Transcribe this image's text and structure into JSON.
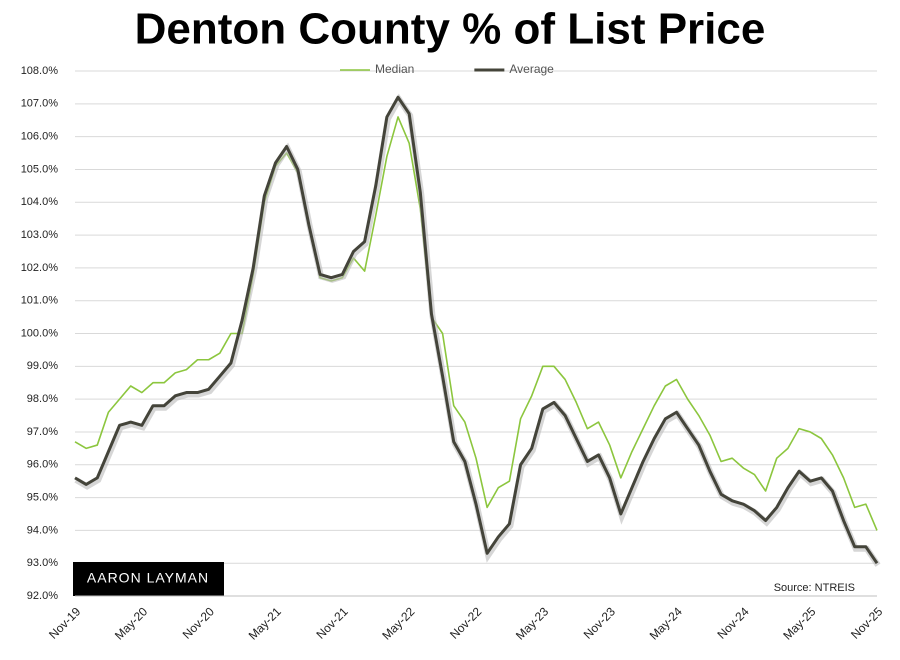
{
  "chart_data": {
    "type": "line",
    "title": "Denton County % of List Price",
    "source": "Source: NTREIS",
    "logo_text": "AARON LAYMAN",
    "legend_position": "top",
    "grid": true,
    "categories": [
      "Nov-19",
      null,
      null,
      null,
      null,
      null,
      "May-20",
      null,
      null,
      null,
      null,
      null,
      "Nov-20",
      null,
      null,
      null,
      null,
      null,
      "May-21",
      null,
      null,
      null,
      null,
      null,
      "Nov-21",
      null,
      null,
      null,
      null,
      null,
      "May-22",
      null,
      null,
      null,
      null,
      null,
      "Nov-22",
      null,
      null,
      null,
      null,
      null,
      "May-23",
      null,
      null,
      null,
      null,
      null,
      "Nov-23",
      null,
      null,
      null,
      null,
      null,
      "May-24",
      null,
      null,
      null,
      null,
      null,
      "Nov-24",
      null,
      null,
      null,
      null,
      null,
      "May-25",
      null,
      null,
      null,
      null,
      null,
      "Nov-25"
    ],
    "series": [
      {
        "name": "Median",
        "color": "#8cc63e",
        "width": 1.6,
        "values": [
          96.7,
          96.5,
          96.6,
          97.6,
          98.0,
          98.4,
          98.2,
          98.5,
          98.5,
          98.8,
          98.9,
          99.2,
          99.2,
          99.4,
          100.0,
          100.0,
          101.8,
          104.0,
          105.1,
          105.5,
          104.9,
          103.3,
          101.7,
          101.6,
          101.7,
          102.3,
          101.9,
          103.6,
          105.4,
          106.6,
          105.8,
          103.8,
          100.5,
          100.0,
          97.8,
          97.3,
          96.2,
          94.7,
          95.3,
          95.5,
          97.4,
          98.1,
          99.0,
          99.0,
          98.6,
          97.9,
          97.1,
          97.3,
          96.6,
          95.6,
          96.4,
          97.1,
          97.8,
          98.4,
          98.6,
          98.0,
          97.5,
          96.9,
          96.1,
          96.2,
          95.9,
          95.7,
          95.2,
          96.2,
          96.5,
          97.1,
          97.0,
          96.8,
          96.3,
          95.6,
          94.7,
          94.8,
          94.0
        ]
      },
      {
        "name": "Average",
        "color": "#44443a",
        "width": 3,
        "values": [
          95.6,
          95.4,
          95.6,
          96.4,
          97.2,
          97.3,
          97.2,
          97.8,
          97.8,
          98.1,
          98.2,
          98.2,
          98.3,
          98.7,
          99.1,
          100.4,
          102.0,
          104.2,
          105.2,
          105.7,
          105.0,
          103.3,
          101.8,
          101.7,
          101.8,
          102.5,
          102.8,
          104.5,
          106.6,
          107.2,
          106.7,
          104.3,
          100.6,
          98.7,
          96.7,
          96.1,
          94.8,
          93.3,
          93.8,
          94.2,
          96.0,
          96.5,
          97.7,
          97.9,
          97.5,
          96.8,
          96.1,
          96.3,
          95.6,
          94.5,
          95.3,
          96.1,
          96.8,
          97.4,
          97.6,
          97.1,
          96.6,
          95.8,
          95.1,
          94.9,
          94.8,
          94.6,
          94.3,
          94.7,
          95.3,
          95.8,
          95.5,
          95.6,
          95.2,
          94.3,
          93.5,
          93.5,
          93.0
        ]
      }
    ],
    "ylim": [
      92,
      108
    ],
    "yticks": [
      {
        "value": 92,
        "label": "92.0%"
      },
      {
        "value": 93,
        "label": "93.0%"
      },
      {
        "value": 94,
        "label": "94.0%"
      },
      {
        "value": 95,
        "label": "95.0%"
      },
      {
        "value": 96,
        "label": "96.0%"
      },
      {
        "value": 97,
        "label": "97.0%"
      },
      {
        "value": 98,
        "label": "98.0%"
      },
      {
        "value": 99,
        "label": "99.0%"
      },
      {
        "value": 100,
        "label": "100.0%"
      },
      {
        "value": 101,
        "label": "101.0%"
      },
      {
        "value": 102,
        "label": "102.0%"
      },
      {
        "value": 103,
        "label": "103.0%"
      },
      {
        "value": 104,
        "label": "104.0%"
      },
      {
        "value": 105,
        "label": "105.0%"
      },
      {
        "value": 106,
        "label": "106.0%"
      },
      {
        "value": 107,
        "label": "107.0%"
      },
      {
        "value": 108,
        "label": "108.0%"
      }
    ]
  }
}
